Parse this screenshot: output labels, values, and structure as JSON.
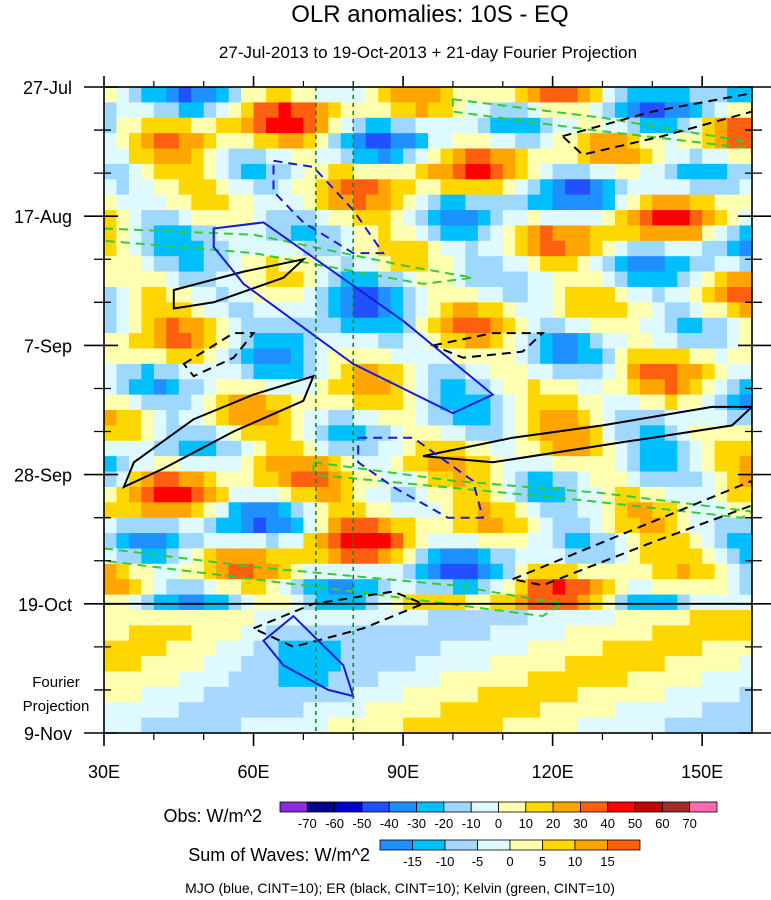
{
  "chart_data": {
    "type": "heatmap",
    "title": "OLR anomalies: 10S - EQ",
    "subtitle": "27-Jul-2013 to 19-Oct-2013 + 21-day Fourier Projection",
    "xlabel": "",
    "ylabel": "",
    "xlim": [
      30,
      160
    ],
    "ylim_days": [
      0,
      105
    ],
    "x_ticks": [
      {
        "label": "30E",
        "value": 30
      },
      {
        "label": "60E",
        "value": 60
      },
      {
        "label": "90E",
        "value": 90
      },
      {
        "label": "120E",
        "value": 120
      },
      {
        "label": "150E",
        "value": 150
      }
    ],
    "y_ticks": [
      {
        "label": "27-Jul",
        "day": 0
      },
      {
        "label": "17-Aug",
        "day": 21
      },
      {
        "label": "7-Sep",
        "day": 42
      },
      {
        "label": "28-Sep",
        "day": 63
      },
      {
        "label": "19-Oct",
        "day": 84
      },
      {
        "label": "9-Nov",
        "day": 105
      }
    ],
    "projection_label_line1": "Fourier",
    "projection_label_line2": "Projection",
    "projection_start_day": 84,
    "reference_longitudes": [
      72.5,
      80
    ],
    "obs_legend": {
      "label": "Obs: W/m^2",
      "levels": [
        "-70",
        "-60",
        "-50",
        "-40",
        "-30",
        "-20",
        "-10",
        "0",
        "10",
        "20",
        "30",
        "40",
        "50",
        "60",
        "70"
      ],
      "colors": [
        "#8a2be2",
        "#00008b",
        "#0000cd",
        "#2050ff",
        "#1e90ff",
        "#00bfff",
        "#9fd8ff",
        "#dffaff",
        "#ffffb0",
        "#ffd700",
        "#ffa500",
        "#ff6010",
        "#ff0000",
        "#c00000",
        "#a52a2a",
        "#ff69b4"
      ]
    },
    "waves_legend": {
      "label": "Sum of Waves: W/m^2",
      "levels": [
        "-15",
        "-10",
        "-5",
        "0",
        "5",
        "10",
        "15"
      ],
      "colors": [
        "#1e90ff",
        "#00bfff",
        "#a8d8ff",
        "#dffaff",
        "#ffffb0",
        "#ffd700",
        "#ffa500",
        "#ff6010"
      ]
    },
    "contour_note": "MJO (blue, CINT=10); ER (black, CINT=10); Kelvin (green, CINT=10)",
    "mjo_contours": [
      {
        "sign": "neg",
        "points": [
          [
            52,
            23
          ],
          [
            62,
            22
          ],
          [
            90,
            38
          ],
          [
            108,
            50
          ],
          [
            100,
            53
          ],
          [
            80,
            45
          ],
          [
            58,
            32
          ],
          [
            52,
            26
          ]
        ]
      },
      {
        "sign": "neg",
        "points": [
          [
            62,
            90
          ],
          [
            68,
            86
          ],
          [
            78,
            94
          ],
          [
            80,
            99
          ],
          [
            75,
            98
          ],
          [
            66,
            94
          ]
        ]
      },
      {
        "sign": "pos",
        "points": [
          [
            64,
            12
          ],
          [
            72,
            13
          ],
          [
            80,
            20
          ],
          [
            86,
            27
          ],
          [
            80,
            27
          ],
          [
            70,
            22
          ],
          [
            64,
            17
          ]
        ]
      },
      {
        "sign": "pos",
        "points": [
          [
            81,
            57
          ],
          [
            92,
            57
          ],
          [
            104,
            64
          ],
          [
            106,
            70
          ],
          [
            99,
            70
          ],
          [
            88,
            65
          ],
          [
            81,
            61
          ]
        ]
      }
    ],
    "er_contours": [
      {
        "sign": "neg",
        "points": [
          [
            36,
            61
          ],
          [
            48,
            54
          ],
          [
            60,
            50
          ],
          [
            72,
            47
          ],
          [
            70,
            51
          ],
          [
            56,
            56
          ],
          [
            42,
            62
          ],
          [
            34,
            65
          ]
        ]
      },
      {
        "sign": "neg",
        "points": [
          [
            44,
            33
          ],
          [
            58,
            30
          ],
          [
            70,
            28
          ],
          [
            66,
            31
          ],
          [
            52,
            35
          ],
          [
            44,
            36
          ]
        ]
      },
      {
        "sign": "neg",
        "points": [
          [
            94,
            60
          ],
          [
            112,
            57
          ],
          [
            130,
            55
          ],
          [
            152,
            52
          ],
          [
            160,
            52
          ],
          [
            156,
            55
          ],
          [
            132,
            58
          ],
          [
            108,
            61
          ]
        ]
      },
      {
        "sign": "pos",
        "points": [
          [
            60,
            88
          ],
          [
            72,
            84
          ],
          [
            88,
            82
          ],
          [
            94,
            84
          ],
          [
            82,
            88
          ],
          [
            68,
            91
          ]
        ]
      },
      {
        "sign": "pos",
        "points": [
          [
            112,
            80
          ],
          [
            130,
            74
          ],
          [
            148,
            68
          ],
          [
            160,
            64
          ],
          [
            160,
            68
          ],
          [
            140,
            74
          ],
          [
            118,
            81
          ]
        ]
      },
      {
        "sign": "pos",
        "points": [
          [
            122,
            8
          ],
          [
            140,
            4
          ],
          [
            160,
            1
          ],
          [
            160,
            4
          ],
          [
            142,
            8
          ],
          [
            126,
            11
          ]
        ]
      },
      {
        "sign": "pos",
        "points": [
          [
            96,
            42
          ],
          [
            108,
            40
          ],
          [
            118,
            40
          ],
          [
            114,
            43
          ],
          [
            102,
            44
          ]
        ]
      },
      {
        "sign": "pos",
        "points": [
          [
            46,
            45
          ],
          [
            56,
            40
          ],
          [
            60,
            40
          ],
          [
            56,
            44
          ],
          [
            48,
            47
          ]
        ]
      }
    ],
    "kelvin_contours": [
      {
        "sign": "pos",
        "points": [
          [
            30,
            23
          ],
          [
            60,
            24
          ],
          [
            90,
            29
          ],
          [
            104,
            31
          ],
          [
            94,
            32
          ],
          [
            60,
            27
          ],
          [
            30,
            25
          ]
        ]
      },
      {
        "sign": "pos",
        "points": [
          [
            30,
            75
          ],
          [
            60,
            78
          ],
          [
            100,
            81
          ],
          [
            122,
            84
          ],
          [
            118,
            86
          ],
          [
            80,
            82
          ],
          [
            30,
            77
          ]
        ]
      },
      {
        "sign": "pos",
        "points": [
          [
            72,
            61
          ],
          [
            100,
            64
          ],
          [
            130,
            66
          ],
          [
            160,
            69
          ],
          [
            158,
            70
          ],
          [
            124,
            67
          ],
          [
            72,
            63
          ]
        ]
      },
      {
        "sign": "pos",
        "points": [
          [
            100,
            2
          ],
          [
            130,
            5
          ],
          [
            160,
            9
          ],
          [
            160,
            10
          ],
          [
            128,
            7
          ],
          [
            100,
            4
          ]
        ]
      }
    ]
  }
}
